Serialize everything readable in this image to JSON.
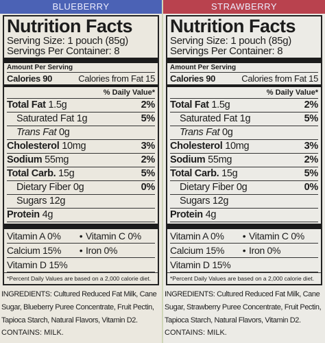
{
  "panels": [
    {
      "flavor": "BLUEBERRY",
      "title": "Nutrition Facts",
      "serving_size": "Serving Size: 1 pouch (85g)",
      "servings": "Servings Per Container: 8",
      "amount_per_serving": "Amount Per Serving",
      "calories": "Calories 90",
      "calories_fat": "Calories from Fat 15",
      "daily_value_header": "% Daily Value*",
      "nutrients": [
        {
          "name": "Total Fat",
          "amount": "1.5g",
          "dv": "2%",
          "style": "bold"
        },
        {
          "name": "Saturated Fat",
          "amount": "1g",
          "dv": "5%",
          "style": "indent"
        },
        {
          "name": "Trans Fat",
          "amount": "0g",
          "style": "trans"
        },
        {
          "name": "Cholesterol",
          "amount": "10mg",
          "dv": "3%",
          "style": "bold"
        },
        {
          "name": "Sodium",
          "amount": "55mg",
          "dv": "2%",
          "style": "bold"
        },
        {
          "name": "Total Carb.",
          "amount": "15g",
          "dv": "5%",
          "style": "bold"
        },
        {
          "name": "Dietary Fiber",
          "amount": "0g",
          "dv": "0%",
          "style": "indent"
        },
        {
          "name": "Sugars",
          "amount": "12g",
          "style": "indent"
        },
        {
          "name": "Protein",
          "amount": "4g",
          "style": "bold"
        }
      ],
      "vitamins": [
        [
          "Vitamin A 0%",
          "Vitamin C 0%"
        ],
        [
          "Calcium 15%",
          "Iron 0%"
        ],
        [
          "Vitamin D 15%"
        ]
      ],
      "footnote": "*Percent Daily Values are based on a 2,000 calorie diet.",
      "ingredients": "INGREDIENTS: Cultured Reduced Fat Milk, Cane Sugar, Blueberry Puree Concentrate, Fruit Pectin, Tapioca Starch, Natural Flavors, Vitamin D2.",
      "contains": "CONTAINS: MILK."
    },
    {
      "flavor": "STRAWBERRY",
      "title": "Nutrition Facts",
      "serving_size": "Serving Size: 1 pouch (85g)",
      "servings": "Servings Per Container: 8",
      "amount_per_serving": "Amount Per Serving",
      "calories": "Calories 90",
      "calories_fat": "Calories from Fat 15",
      "daily_value_header": "% Daily Value*",
      "nutrients": [
        {
          "name": "Total Fat",
          "amount": "1.5g",
          "dv": "2%",
          "style": "bold"
        },
        {
          "name": "Saturated Fat",
          "amount": "1g",
          "dv": "5%",
          "style": "indent"
        },
        {
          "name": "Trans Fat",
          "amount": "0g",
          "style": "trans"
        },
        {
          "name": "Cholesterol",
          "amount": "10mg",
          "dv": "3%",
          "style": "bold"
        },
        {
          "name": "Sodium",
          "amount": "55mg",
          "dv": "2%",
          "style": "bold"
        },
        {
          "name": "Total Carb.",
          "amount": "15g",
          "dv": "5%",
          "style": "bold"
        },
        {
          "name": "Dietary Fiber",
          "amount": "0g",
          "dv": "0%",
          "style": "indent"
        },
        {
          "name": "Sugars",
          "amount": "12g",
          "style": "indent"
        },
        {
          "name": "Protein",
          "amount": "4g",
          "style": "bold"
        }
      ],
      "vitamins": [
        [
          "Vitamin A 0%",
          "Vitamin C 0%"
        ],
        [
          "Calcium 15%",
          "Iron 0%"
        ],
        [
          "Vitamin D 15%"
        ]
      ],
      "footnote": "*Percent Daily Values are based on a 2,000 calorie diet.",
      "ingredients": "INGREDIENTS: Cultured Reduced Fat Milk, Cane Sugar, Strawberry Puree Concentrate, Fruit Pectin, Tapioca Starch, Natural Flavors, Vitamin D2.",
      "contains": "CONTAINS: MILK."
    }
  ]
}
